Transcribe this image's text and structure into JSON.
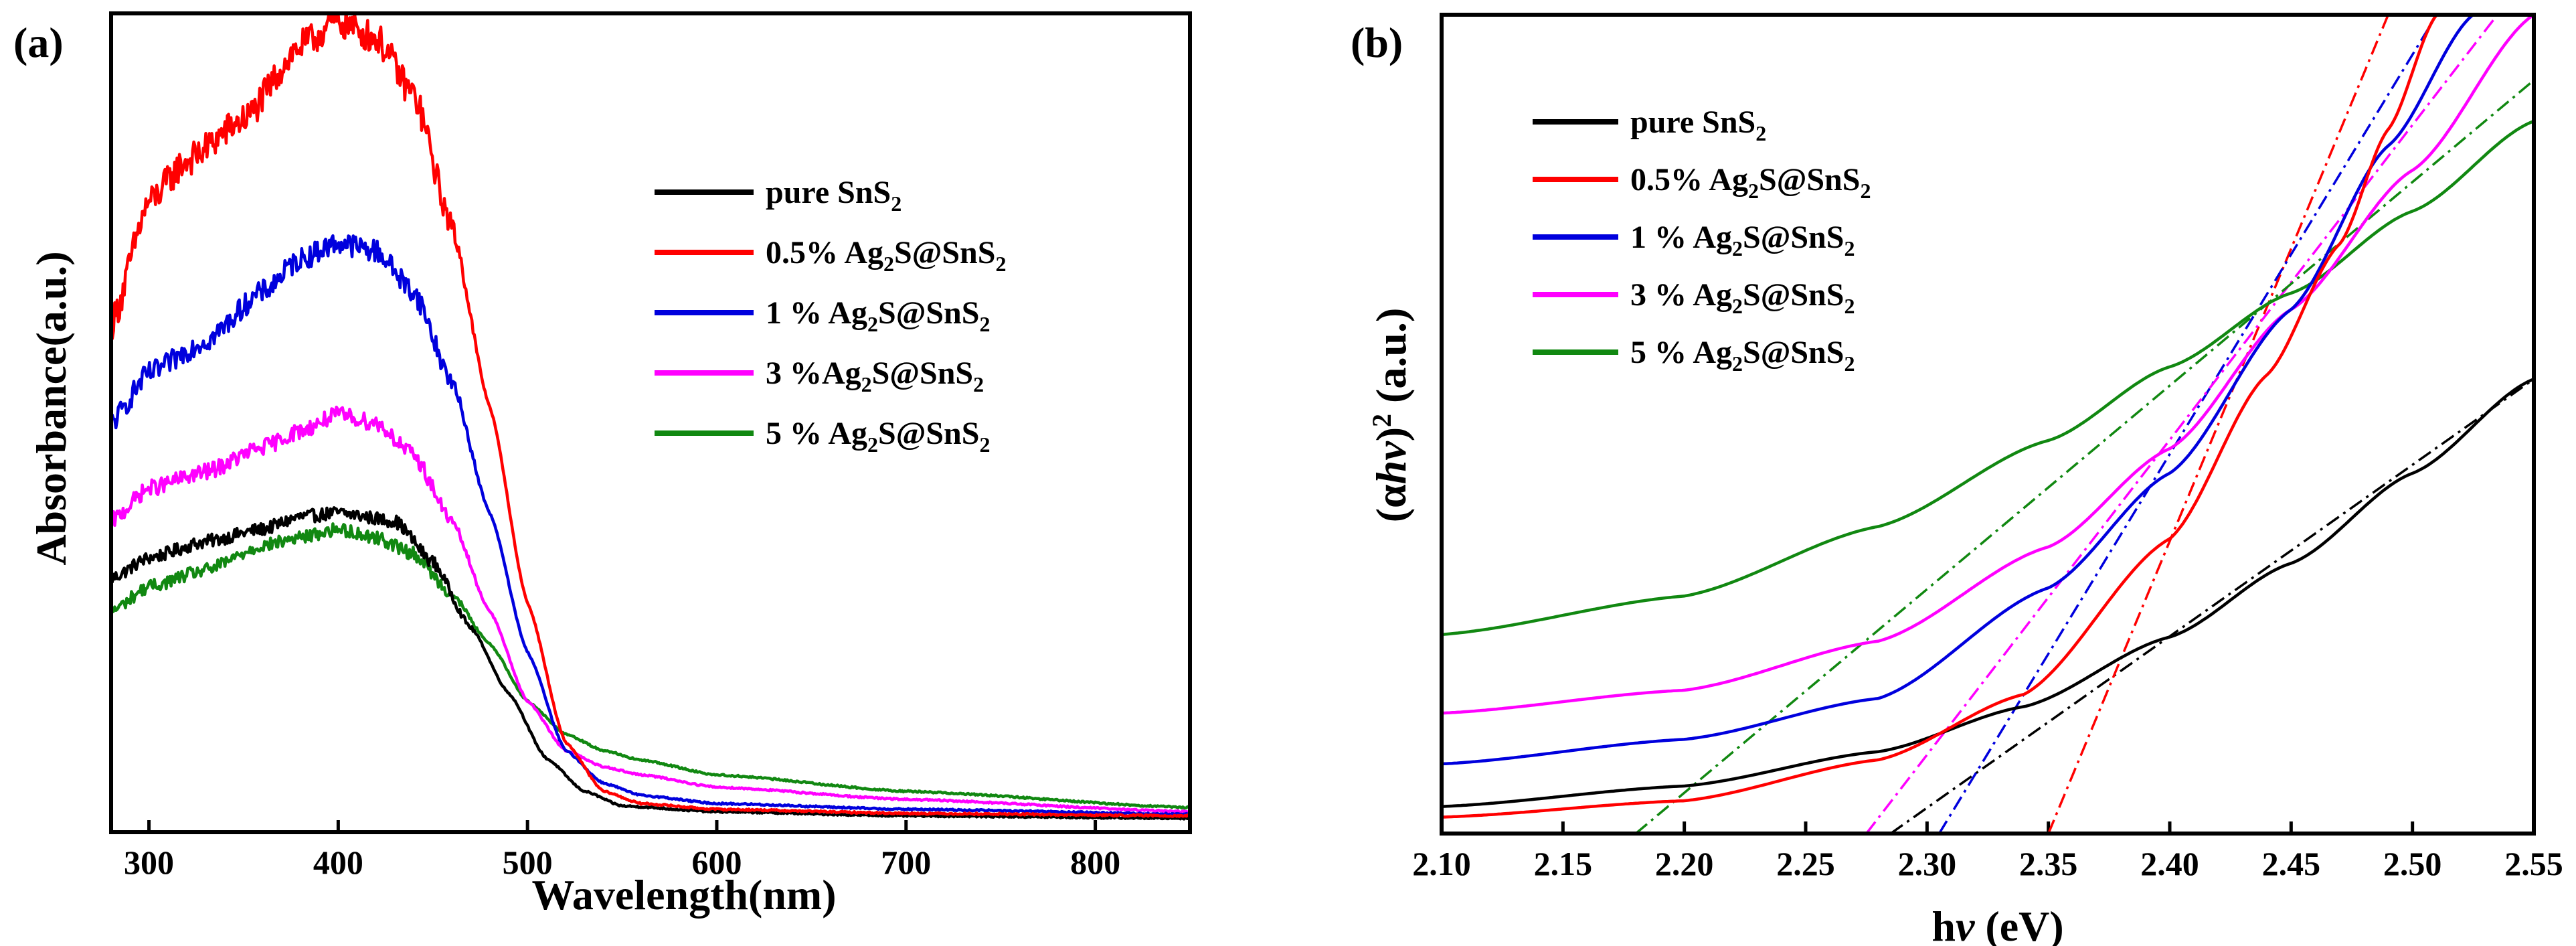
{
  "chart_data": [
    {
      "panel_label": "(a)",
      "type": "line",
      "xlabel": "Wavelength(nm)",
      "ylabel": "Absorbance(a.u.)",
      "xlim": [
        280,
        850
      ],
      "ylim": [
        0,
        1.0
      ],
      "xticks": [
        300,
        400,
        500,
        600,
        700,
        800
      ],
      "y_ticks_labeled": false,
      "legend_position": "upper-right",
      "series": [
        {
          "name": "pure SnS2",
          "legend_parts": [
            "pure SnS",
            "2",
            ""
          ],
          "color": "#000000",
          "x": [
            280,
            300,
            330,
            360,
            380,
            400,
            430,
            450,
            470,
            490,
            510,
            530,
            550,
            600,
            700,
            850
          ],
          "y": [
            0.31,
            0.335,
            0.355,
            0.37,
            0.385,
            0.39,
            0.38,
            0.33,
            0.25,
            0.17,
            0.09,
            0.05,
            0.032,
            0.025,
            0.02,
            0.017
          ],
          "noise": 0.008
        },
        {
          "name": "0.5% Ag2S@SnS2",
          "legend_parts": [
            "0.5% Ag",
            "2",
            "S@SnS",
            "2"
          ],
          "color": "#ff0000",
          "x": [
            280,
            300,
            320,
            350,
            380,
            400,
            420,
            440,
            460,
            480,
            500,
            520,
            540,
            560,
            600,
            700,
            850
          ],
          "y": [
            0.62,
            0.77,
            0.82,
            0.87,
            0.96,
            0.99,
            0.97,
            0.9,
            0.74,
            0.52,
            0.28,
            0.11,
            0.05,
            0.035,
            0.028,
            0.023,
            0.02
          ],
          "noise": 0.02
        },
        {
          "name": "1 % Ag2S@SnS2",
          "legend_parts": [
            "1 % Ag",
            "2",
            "S@SnS",
            "2"
          ],
          "color": "#0000dd",
          "x": [
            280,
            300,
            330,
            360,
            380,
            400,
            420,
            440,
            460,
            480,
            500,
            520,
            540,
            560,
            600,
            700,
            850
          ],
          "y": [
            0.5,
            0.56,
            0.6,
            0.66,
            0.7,
            0.72,
            0.71,
            0.66,
            0.55,
            0.39,
            0.22,
            0.1,
            0.06,
            0.045,
            0.035,
            0.028,
            0.022
          ],
          "noise": 0.014
        },
        {
          "name": "3 %Ag2S@SnS2",
          "legend_parts": [
            "3 %Ag",
            "2",
            "S@SnS",
            "2"
          ],
          "color": "#ff00ff",
          "x": [
            280,
            300,
            330,
            360,
            380,
            400,
            420,
            440,
            460,
            480,
            500,
            520,
            540,
            560,
            600,
            700,
            850
          ],
          "y": [
            0.38,
            0.42,
            0.44,
            0.47,
            0.49,
            0.51,
            0.5,
            0.46,
            0.38,
            0.27,
            0.16,
            0.1,
            0.08,
            0.07,
            0.055,
            0.04,
            0.025
          ],
          "noise": 0.01
        },
        {
          "name": "5 % Ag2S@SnS2",
          "legend_parts": [
            "5 % Ag",
            "2",
            "S@SnS",
            "2"
          ],
          "color": "#118811",
          "x": [
            280,
            300,
            330,
            360,
            380,
            400,
            420,
            440,
            460,
            480,
            500,
            520,
            540,
            560,
            600,
            700,
            850
          ],
          "y": [
            0.27,
            0.3,
            0.32,
            0.35,
            0.36,
            0.37,
            0.36,
            0.34,
            0.29,
            0.23,
            0.16,
            0.12,
            0.1,
            0.088,
            0.07,
            0.05,
            0.03
          ],
          "noise": 0.008
        }
      ]
    },
    {
      "panel_label": "(b)",
      "type": "line",
      "xlabel_parts": [
        "h",
        "ν",
        " (eV)"
      ],
      "ylabel_parts": [
        "(α",
        "hν",
        ")",
        "2",
        " (a.u.)"
      ],
      "xlim": [
        2.1,
        2.55
      ],
      "ylim": [
        0,
        1.0
      ],
      "xticks": [
        2.1,
        2.15,
        2.2,
        2.25,
        2.3,
        2.35,
        2.4,
        2.45,
        2.5,
        2.55
      ],
      "xtick_labels": [
        "2.10",
        "2.15",
        "2.20",
        "2.25",
        "2.30",
        "2.35",
        "2.40",
        "2.45",
        "2.50",
        "2.55"
      ],
      "y_ticks_labeled": false,
      "legend_position": "upper-left",
      "series": [
        {
          "name": "pure SnS2",
          "legend_parts": [
            "pure SnS",
            "2",
            ""
          ],
          "color": "#000000",
          "x": [
            2.1,
            2.2,
            2.28,
            2.34,
            2.4,
            2.45,
            2.5,
            2.55
          ],
          "y": [
            0.033,
            0.058,
            0.1,
            0.155,
            0.24,
            0.33,
            0.44,
            0.555
          ]
        },
        {
          "name": "0.5% Ag2S@SnS2",
          "legend_parts": [
            "0.5% Ag",
            "2",
            "S@SnS",
            "2"
          ],
          "color": "#ff0000",
          "x": [
            2.1,
            2.2,
            2.28,
            2.34,
            2.4,
            2.44,
            2.47,
            2.49,
            2.51
          ],
          "y": [
            0.02,
            0.04,
            0.09,
            0.17,
            0.36,
            0.56,
            0.72,
            0.86,
            1.0
          ]
        },
        {
          "name": "1 % Ag2S@SnS2",
          "legend_parts": [
            "1 % Ag",
            "2",
            "S@SnS",
            "2"
          ],
          "color": "#0000dd",
          "x": [
            2.1,
            2.2,
            2.28,
            2.35,
            2.4,
            2.45,
            2.49,
            2.525
          ],
          "y": [
            0.085,
            0.115,
            0.165,
            0.3,
            0.44,
            0.64,
            0.84,
            1.0
          ]
        },
        {
          "name": "3 % Ag2S@SnS2",
          "legend_parts": [
            "3 % Ag",
            "2",
            "S@SnS",
            "2"
          ],
          "color": "#ff00ff",
          "x": [
            2.1,
            2.2,
            2.28,
            2.35,
            2.4,
            2.45,
            2.5,
            2.55
          ],
          "y": [
            0.147,
            0.175,
            0.235,
            0.35,
            0.47,
            0.64,
            0.81,
            1.0
          ]
        },
        {
          "name": "5 % Ag2S@SnS2",
          "legend_parts": [
            "5 % Ag",
            "2",
            "S@SnS",
            "2"
          ],
          "color": "#118811",
          "x": [
            2.1,
            2.2,
            2.28,
            2.35,
            2.4,
            2.45,
            2.5,
            2.55
          ],
          "y": [
            0.243,
            0.29,
            0.375,
            0.48,
            0.57,
            0.66,
            0.76,
            0.87
          ]
        }
      ],
      "tangent_lines": [
        {
          "series": "pure SnS2",
          "color": "#000000",
          "x0": 2.285,
          "x1": 2.55,
          "y0": 0.0,
          "y1": 0.555
        },
        {
          "series": "0.5% Ag2S@SnS2",
          "color": "#ff0000",
          "x0": 2.35,
          "x1": 2.49,
          "y0": 0.0,
          "y1": 1.0
        },
        {
          "series": "1 % Ag2S@SnS2",
          "color": "#0000dd",
          "x0": 2.305,
          "x1": 2.51,
          "y0": 0.0,
          "y1": 1.0
        },
        {
          "series": "3 % Ag2S@SnS2",
          "color": "#ff00ff",
          "x0": 2.275,
          "x1": 2.535,
          "y0": 0.0,
          "y1": 1.0
        },
        {
          "series": "5 % Ag2S@SnS2",
          "color": "#118811",
          "x0": 2.18,
          "x1": 2.55,
          "y0": 0.0,
          "y1": 0.92
        }
      ]
    }
  ]
}
